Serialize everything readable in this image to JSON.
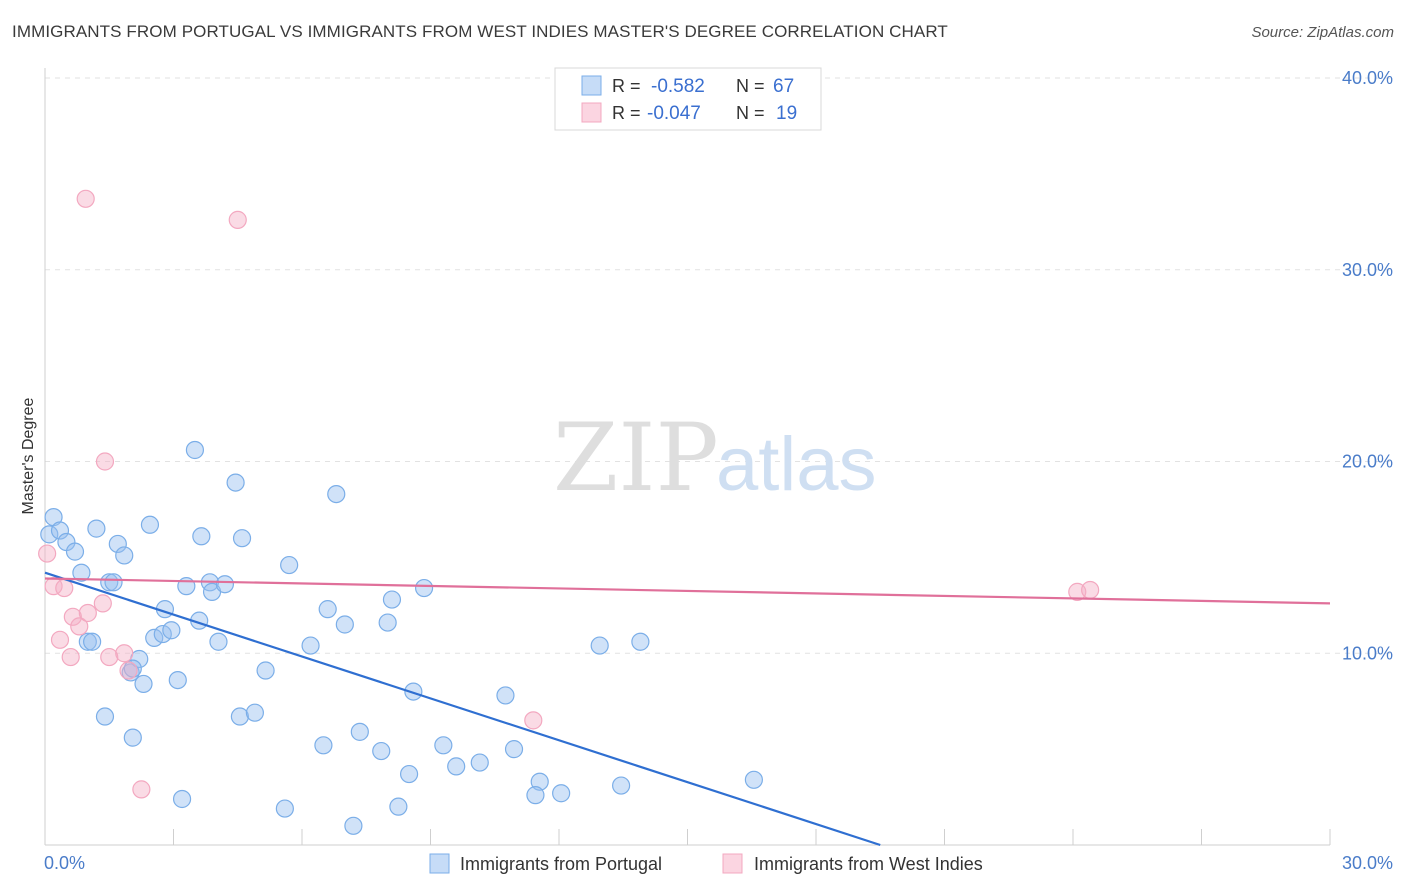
{
  "header": {
    "title": "IMMIGRANTS FROM PORTUGAL VS IMMIGRANTS FROM WEST INDIES MASTER'S DEGREE CORRELATION CHART",
    "source": "Source: ZipAtlas.com"
  },
  "watermark": {
    "zip": "ZIP",
    "atlas": "atlas"
  },
  "colors": {
    "blue": "#7baee8",
    "blue_line": "#2f6fd1",
    "pink": "#f3a8c0",
    "pink_line": "#e0709a",
    "axis_text": "#4a7cc9",
    "grid": "#e2e2e2"
  },
  "legend": {
    "rows": [
      {
        "r_label": "R =",
        "r_value": "-0.582",
        "n_label": "N =",
        "n_value": "67"
      },
      {
        "r_label": "R =",
        "r_value": "-0.047",
        "n_label": "N =",
        "n_value": "19"
      }
    ]
  },
  "chart_data": {
    "type": "scatter",
    "title": "IMMIGRANTS FROM PORTUGAL VS IMMIGRANTS FROM WEST INDIES MASTER'S DEGREE CORRELATION CHART",
    "xlabel": "",
    "ylabel": "Master's Degree",
    "xlim": [
      0,
      30
    ],
    "ylim": [
      0,
      40
    ],
    "x_tick_labels": [
      "0.0%",
      "30.0%"
    ],
    "y_ticks": [
      10,
      20,
      30,
      40
    ],
    "y_tick_labels": [
      "10.0%",
      "20.0%",
      "30.0%",
      "40.0%"
    ],
    "grid": true,
    "series": [
      {
        "name": "Immigrants from Portugal",
        "color": "blue",
        "points": [
          [
            0.1,
            16.2
          ],
          [
            0.2,
            17.1
          ],
          [
            0.35,
            16.4
          ],
          [
            0.5,
            15.8
          ],
          [
            0.7,
            15.3
          ],
          [
            0.85,
            14.2
          ],
          [
            1.0,
            10.6
          ],
          [
            1.1,
            10.6
          ],
          [
            1.2,
            16.5
          ],
          [
            1.4,
            6.7
          ],
          [
            1.5,
            13.7
          ],
          [
            1.6,
            13.7
          ],
          [
            1.7,
            15.7
          ],
          [
            1.85,
            15.1
          ],
          [
            2.0,
            9.0
          ],
          [
            2.05,
            5.6
          ],
          [
            2.2,
            9.7
          ],
          [
            2.3,
            8.4
          ],
          [
            2.45,
            16.7
          ],
          [
            2.55,
            10.8
          ],
          [
            2.75,
            11.0
          ],
          [
            2.8,
            12.3
          ],
          [
            2.95,
            11.2
          ],
          [
            3.1,
            8.6
          ],
          [
            3.2,
            2.4
          ],
          [
            3.3,
            13.5
          ],
          [
            3.5,
            20.6
          ],
          [
            3.6,
            11.7
          ],
          [
            3.65,
            16.1
          ],
          [
            3.85,
            13.7
          ],
          [
            3.9,
            13.2
          ],
          [
            4.05,
            10.6
          ],
          [
            4.2,
            13.6
          ],
          [
            4.45,
            18.9
          ],
          [
            4.55,
            6.7
          ],
          [
            4.6,
            16.0
          ],
          [
            4.9,
            6.9
          ],
          [
            5.15,
            9.1
          ],
          [
            5.6,
            1.9
          ],
          [
            5.7,
            14.6
          ],
          [
            6.2,
            10.4
          ],
          [
            6.5,
            5.2
          ],
          [
            6.6,
            12.3
          ],
          [
            6.8,
            18.3
          ],
          [
            7.0,
            11.5
          ],
          [
            7.2,
            1.0
          ],
          [
            7.35,
            5.9
          ],
          [
            7.85,
            4.9
          ],
          [
            8.0,
            11.6
          ],
          [
            8.1,
            12.8
          ],
          [
            8.25,
            2.0
          ],
          [
            8.5,
            3.7
          ],
          [
            8.6,
            8.0
          ],
          [
            8.85,
            13.4
          ],
          [
            9.3,
            5.2
          ],
          [
            9.6,
            4.1
          ],
          [
            10.15,
            4.3
          ],
          [
            10.75,
            7.8
          ],
          [
            10.95,
            5.0
          ],
          [
            11.55,
            3.3
          ],
          [
            11.45,
            2.6
          ],
          [
            12.05,
            2.7
          ],
          [
            12.95,
            10.4
          ],
          [
            13.45,
            3.1
          ],
          [
            13.9,
            10.6
          ],
          [
            16.55,
            3.4
          ],
          [
            2.05,
            9.2
          ]
        ],
        "regression": {
          "x": [
            0,
            19.5
          ],
          "y": [
            14.2,
            0.0
          ]
        }
      },
      {
        "name": "Immigrants from West Indies",
        "color": "pink",
        "points": [
          [
            0.05,
            15.2
          ],
          [
            0.2,
            13.5
          ],
          [
            0.45,
            13.4
          ],
          [
            0.35,
            10.7
          ],
          [
            0.6,
            9.8
          ],
          [
            0.65,
            11.9
          ],
          [
            0.8,
            11.4
          ],
          [
            0.95,
            33.7
          ],
          [
            1.0,
            12.1
          ],
          [
            1.35,
            12.6
          ],
          [
            1.5,
            9.8
          ],
          [
            1.4,
            20.0
          ],
          [
            1.85,
            10.0
          ],
          [
            1.95,
            9.1
          ],
          [
            2.25,
            2.9
          ],
          [
            4.5,
            32.6
          ],
          [
            11.4,
            6.5
          ],
          [
            24.1,
            13.2
          ],
          [
            24.4,
            13.3
          ]
        ],
        "regression": {
          "x": [
            0,
            30
          ],
          "y": [
            13.9,
            12.6
          ]
        }
      }
    ]
  }
}
